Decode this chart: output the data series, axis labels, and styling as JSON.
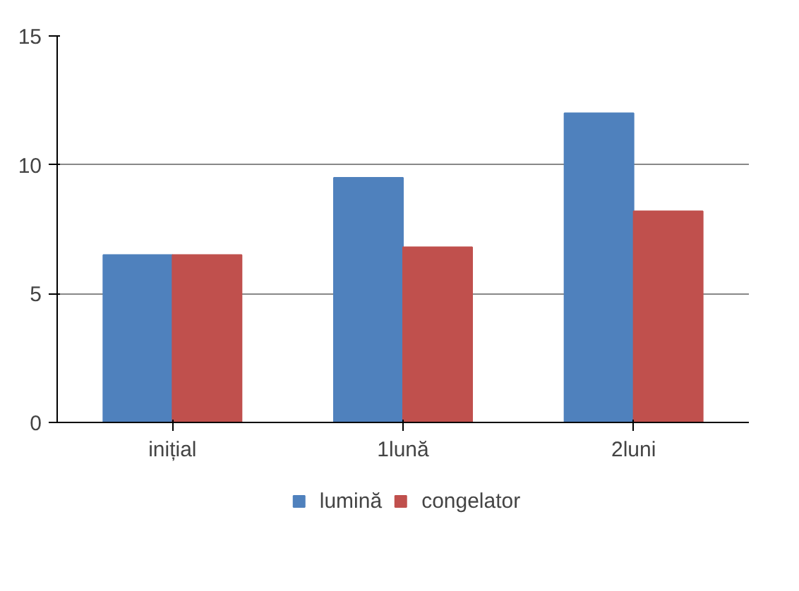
{
  "chart_data": {
    "type": "bar",
    "categories": [
      "inițial",
      "1lună",
      "2luni"
    ],
    "series": [
      {
        "name": "lumină",
        "color": "#4f81bd",
        "values": [
          6.5,
          9.5,
          12
        ]
      },
      {
        "name": "congelator",
        "color": "#c0504d",
        "values": [
          6.5,
          6.8,
          8.2
        ]
      }
    ],
    "ylim": [
      0,
      15
    ],
    "yticks": [
      0,
      5,
      10,
      15
    ],
    "grid": "y",
    "legend": "bottom"
  }
}
